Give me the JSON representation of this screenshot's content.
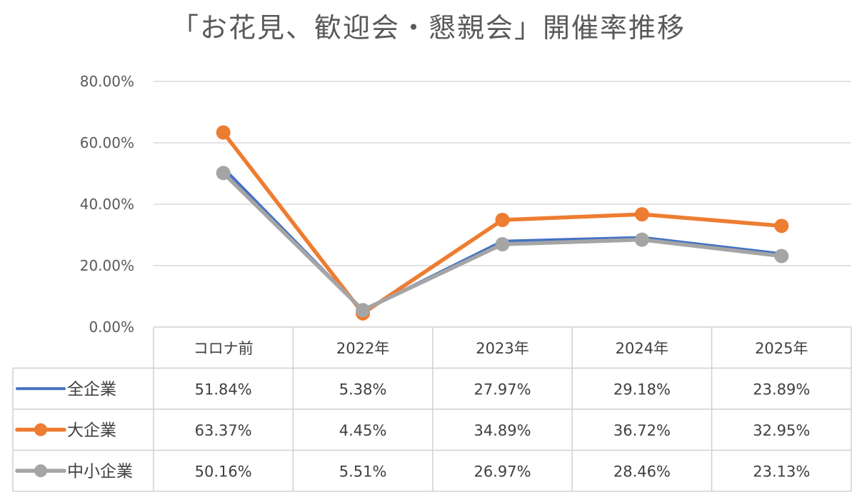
{
  "chart_data": {
    "type": "line",
    "title": "「お花見、歓迎会・懇親会」開催率推移",
    "categories": [
      "コロナ前",
      "2022年",
      "2023年",
      "2024年",
      "2025年"
    ],
    "ylim": [
      0,
      80
    ],
    "yticks": [
      0,
      20,
      40,
      60,
      80
    ],
    "ytick_labels": [
      "0.00%",
      "20.00%",
      "40.00%",
      "60.00%",
      "80.00%"
    ],
    "grid": true,
    "data_table": true,
    "series": [
      {
        "name": "全企業",
        "color": "#4472C4",
        "marker": false,
        "values": [
          51.84,
          5.38,
          27.97,
          29.18,
          23.89
        ],
        "labels": [
          "51.84%",
          "5.38%",
          "27.97%",
          "29.18%",
          "23.89%"
        ]
      },
      {
        "name": "大企業",
        "color": "#ED7D31",
        "marker": true,
        "values": [
          63.37,
          4.45,
          34.89,
          36.72,
          32.95
        ],
        "labels": [
          "63.37%",
          "4.45%",
          "34.89%",
          "36.72%",
          "32.95%"
        ]
      },
      {
        "name": "中小企業",
        "color": "#A5A5A5",
        "marker": true,
        "values": [
          50.16,
          5.51,
          26.97,
          28.46,
          23.13
        ],
        "labels": [
          "50.16%",
          "5.51%",
          "26.97%",
          "28.46%",
          "23.13%"
        ]
      }
    ]
  }
}
